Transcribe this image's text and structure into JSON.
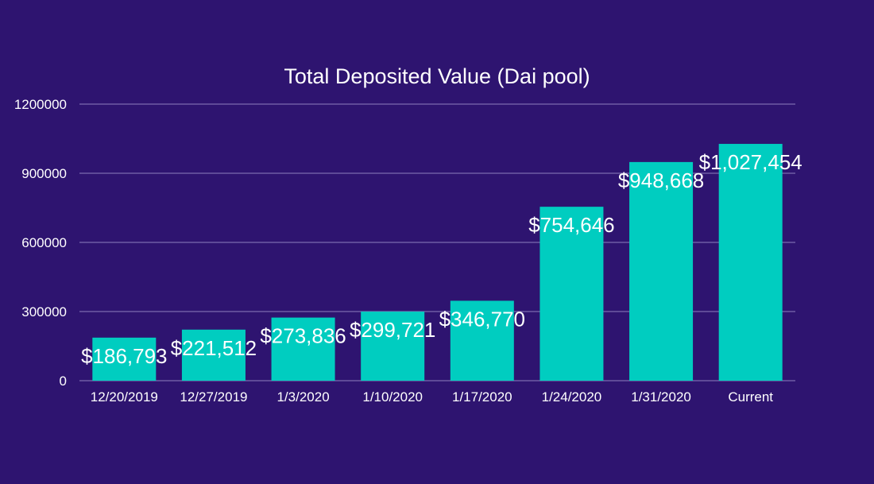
{
  "chart_data": {
    "type": "bar",
    "title": "Total Deposited Value (Dai pool)",
    "xlabel": "",
    "ylabel": "",
    "categories": [
      "12/20/2019",
      "12/27/2019",
      "1/3/2020",
      "1/10/2020",
      "1/17/2020",
      "1/24/2020",
      "1/31/2020",
      "Current"
    ],
    "values": [
      186793,
      221512,
      273836,
      299721,
      346770,
      754646,
      948668,
      1027454
    ],
    "data_labels": [
      "$186,793",
      "$221,512",
      "$273,836",
      "$299,721",
      "$346,770",
      "$754,646",
      "$948,668",
      "$1,027,454"
    ],
    "ylim": [
      0,
      1200000
    ],
    "yticks": [
      0,
      300000,
      600000,
      900000,
      1200000
    ],
    "ytick_labels": [
      "0",
      "300000",
      "600000",
      "900000",
      "1200000"
    ],
    "grid": true,
    "legend": "none",
    "colors": {
      "background": "#2e1470",
      "bar": "#00cdc0",
      "text": "#ffffff",
      "grid": "#b7aee0"
    }
  }
}
